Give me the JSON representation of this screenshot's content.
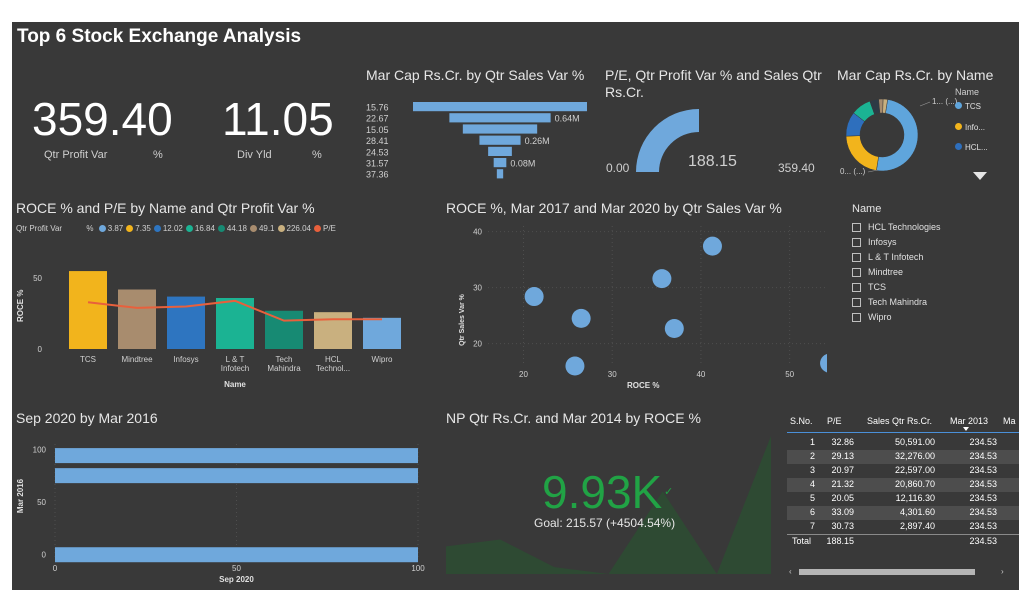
{
  "page_title": "Top 6 Stock Exchange Analysis",
  "kpi1": {
    "value": "359.40",
    "label": "Qtr Profit Var",
    "unit": "%"
  },
  "kpi2": {
    "value": "11.05",
    "label": "Div Yld",
    "unit": "%"
  },
  "funnel": {
    "title": "Mar Cap Rs.Cr. by Qtr Sales Var %",
    "categories": [
      "15.76",
      "22.67",
      "15.05",
      "28.41",
      "24.53",
      "31.57",
      "37.36"
    ],
    "labels": [
      "",
      "0.64M",
      "",
      "0.26M",
      "",
      "0.08M",
      ""
    ]
  },
  "gauge": {
    "title": "P/E, Qtr Profit Var % and Sales Qtr Rs.Cr.",
    "min": "0.00",
    "value": "188.15",
    "max": "359.40"
  },
  "donut": {
    "title": "Mar Cap Rs.Cr. by Name",
    "legend_title": "Name",
    "legend": [
      {
        "label": "TCS",
        "color": "#5fa5dc"
      },
      {
        "label": "Info...",
        "color": "#f2b41c"
      },
      {
        "label": "HCL...",
        "color": "#2e6fbd"
      }
    ],
    "label_top": "1... (...)",
    "label_bottom": "0... (...)"
  },
  "roce_chart": {
    "title": "ROCE % and P/E by Name and Qtr Profit Var %",
    "legend_title": "Qtr Profit Var",
    "legend_unit": "%",
    "legend": [
      {
        "label": "3.87",
        "color": "#6fa8dc"
      },
      {
        "label": "7.35",
        "color": "#f2b41c"
      },
      {
        "label": "12.02",
        "color": "#2e75c0"
      },
      {
        "label": "16.84",
        "color": "#1bb393"
      },
      {
        "label": "44.18",
        "color": "#178a73"
      },
      {
        "label": "49.1",
        "color": "#a88c6e"
      },
      {
        "label": "226.04",
        "color": "#c9b07f"
      },
      {
        "label": "P/E",
        "color": "#e8603c"
      }
    ],
    "ylabel": "ROCE %",
    "xlabel": "Name",
    "yticks": [
      "50",
      "0"
    ]
  },
  "scatter": {
    "title": "ROCE %, Mar 2017 and Mar 2020 by Qtr Sales Var %",
    "ylabel": "Qtr Sales Var %",
    "xlabel": "ROCE %",
    "xticks": [
      "20",
      "30",
      "40",
      "50"
    ],
    "yticks": [
      "40",
      "30",
      "20"
    ]
  },
  "slicer": {
    "title": "Name",
    "items": [
      "HCL Technologies",
      "Infosys",
      "L & T Infotech",
      "Mindtree",
      "TCS",
      "Tech Mahindra",
      "Wipro"
    ]
  },
  "hbar": {
    "title": "Sep 2020 by Mar 2016",
    "ylabel": "Mar 2016",
    "xlabel": "Sep 2020",
    "yticks": [
      "100",
      "50",
      "0"
    ],
    "xticks": [
      "0",
      "50",
      "100"
    ]
  },
  "np_kpi": {
    "title": "NP Qtr Rs.Cr. and Mar 2014 by ROCE %",
    "value": "9.93K",
    "goal": "Goal: 215.57 (+4504.54%)"
  },
  "table": {
    "headers": [
      "S.No.",
      "P/E",
      "Sales Qtr Rs.Cr.",
      "Mar 2013",
      "Ma"
    ],
    "rows": [
      [
        "1",
        "32.86",
        "50,591.00",
        "234.53"
      ],
      [
        "2",
        "29.13",
        "32,276.00",
        "234.53"
      ],
      [
        "3",
        "20.97",
        "22,597.00",
        "234.53"
      ],
      [
        "4",
        "21.32",
        "20,860.70",
        "234.53"
      ],
      [
        "5",
        "20.05",
        "12,116.30",
        "234.53"
      ],
      [
        "6",
        "33.09",
        "4,301.60",
        "234.53"
      ],
      [
        "7",
        "30.73",
        "2,897.40",
        "234.53"
      ]
    ],
    "total": [
      "Total",
      "188.15",
      "",
      "234.53"
    ]
  },
  "chart_data": [
    {
      "type": "bar",
      "title": "ROCE % and P/E by Name and Qtr Profit Var %",
      "categories": [
        "TCS",
        "Mindtree",
        "Infosys",
        "L & T Infotech",
        "Tech Mahindra",
        "HCL Technol...",
        "Wipro"
      ],
      "category_labels": [
        [
          "TCS"
        ],
        [
          "Mindtree"
        ],
        [
          "Infosys"
        ],
        [
          "L & T",
          "Infotech"
        ],
        [
          "Tech",
          "Mahindra"
        ],
        [
          "HCL",
          "Technol..."
        ],
        [
          "Wipro"
        ]
      ],
      "series": [
        {
          "name": "ROCE %",
          "values": [
            55,
            42,
            37,
            36,
            27,
            26,
            22
          ],
          "colors": [
            "#f2b41c",
            "#a88c6e",
            "#2e75c0",
            "#1bb393",
            "#178a73",
            "#c9b07f",
            "#6fa8dc"
          ]
        },
        {
          "name": "P/E",
          "values": [
            33,
            29,
            30,
            34,
            20,
            21,
            21
          ],
          "color": "#e8603c"
        }
      ],
      "ylabel": "ROCE %",
      "xlabel": "Name",
      "ylim": [
        0,
        60
      ]
    },
    {
      "type": "scatter",
      "title": "ROCE %, Mar 2017 and Mar 2020 by Qtr Sales Var %",
      "points": [
        {
          "x": 21.2,
          "y": 28.4
        },
        {
          "x": 25.8,
          "y": 16.0
        },
        {
          "x": 26.5,
          "y": 24.5
        },
        {
          "x": 35.6,
          "y": 31.6
        },
        {
          "x": 37.0,
          "y": 22.7
        },
        {
          "x": 41.3,
          "y": 37.4
        },
        {
          "x": 54.5,
          "y": 16.5
        }
      ],
      "xlabel": "ROCE %",
      "ylabel": "Qtr Sales Var %",
      "xlim": [
        16,
        55
      ],
      "ylim": [
        16,
        41
      ]
    },
    {
      "type": "bar",
      "title": "Sep 2020 by Mar 2016",
      "orientation": "horizontal",
      "series": [
        {
          "name": "Sep 2020",
          "values": [
            100,
            100,
            100
          ],
          "y": [
            94,
            75,
            0
          ]
        }
      ],
      "xlabel": "Sep 2020",
      "ylabel": "Mar 2016",
      "xlim": [
        0,
        100
      ],
      "ylim": [
        -5,
        105
      ]
    },
    {
      "type": "area",
      "title": "NP Qtr Rs.Cr. and Mar 2014 by ROCE %",
      "values": [
        20,
        25,
        5,
        0,
        60,
        0,
        100
      ],
      "ylim": [
        0,
        100
      ]
    },
    {
      "type": "bar",
      "title": "Mar Cap Rs.Cr. by Qtr Sales Var %",
      "orientation": "funnel",
      "categories": [
        "15.76",
        "22.67",
        "15.05",
        "28.41",
        "24.53",
        "31.57",
        "37.36"
      ],
      "values": [
        1.1,
        0.64,
        0.47,
        0.26,
        0.15,
        0.08,
        0.04
      ]
    },
    {
      "type": "pie",
      "title": "Mar Cap Rs.Cr. by Name",
      "hole": true,
      "series": [
        {
          "name": "TCS",
          "value": 50,
          "color": "#5fa5dc"
        },
        {
          "name": "Infosys",
          "value": 22,
          "color": "#f2b41c"
        },
        {
          "name": "HCL Technologies",
          "value": 11,
          "color": "#2e6fbd"
        },
        {
          "name": "Wipro",
          "value": 9,
          "color": "#1bb393"
        },
        {
          "name": "Tech Mahindra",
          "value": 4,
          "color": "#2d3a45"
        },
        {
          "name": "L & T Infotech",
          "value": 2,
          "color": "#a88c6e"
        },
        {
          "name": "Mindtree",
          "value": 2,
          "color": "#c9b07f"
        }
      ]
    },
    {
      "type": "gauge",
      "title": "P/E, Qtr Profit Var % and Sales Qtr Rs.Cr.",
      "min": 0,
      "max": 359.4,
      "value": 188.15
    }
  ]
}
